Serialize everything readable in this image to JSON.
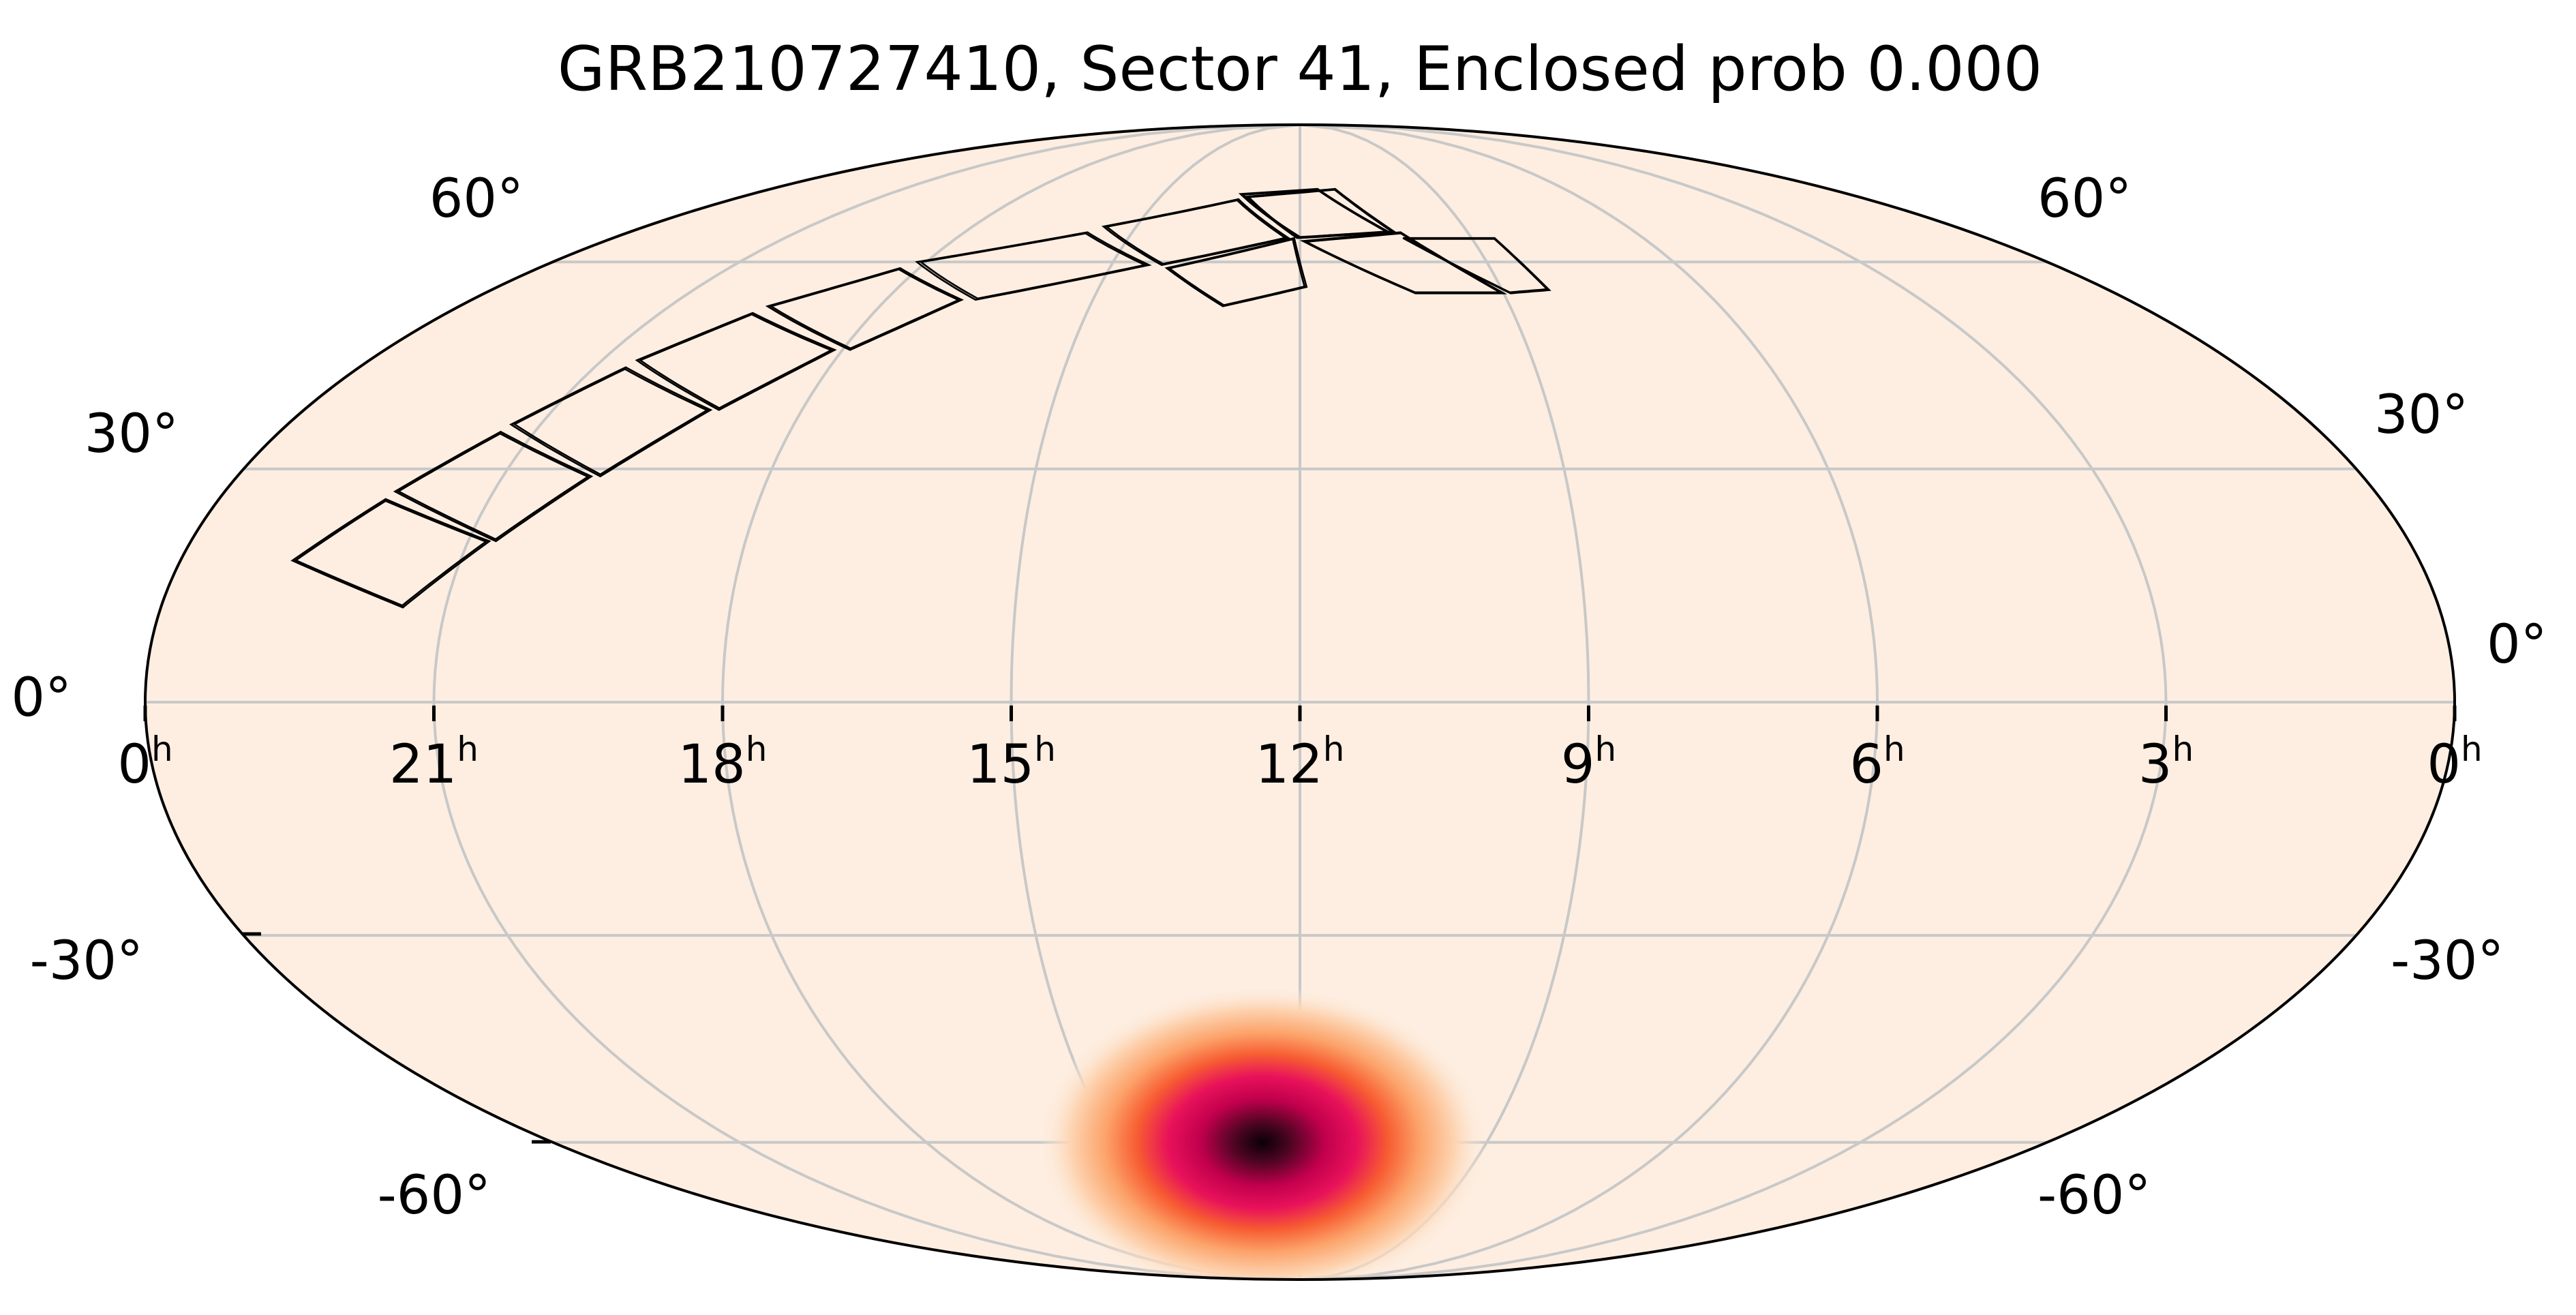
{
  "chart_data": {
    "type": "heatmap",
    "projection": "mollweide",
    "title": "GRB210727410, Sector 41, Enclosed prob 0.000",
    "ra_ticks": [
      {
        "label": "0",
        "sup": "h",
        "ra_hours": 24
      },
      {
        "label": "21",
        "sup": "h",
        "ra_hours": 21
      },
      {
        "label": "18",
        "sup": "h",
        "ra_hours": 18
      },
      {
        "label": "15",
        "sup": "h",
        "ra_hours": 15
      },
      {
        "label": "12",
        "sup": "h",
        "ra_hours": 12
      },
      {
        "label": "9",
        "sup": "h",
        "ra_hours": 9
      },
      {
        "label": "6",
        "sup": "h",
        "ra_hours": 6
      },
      {
        "label": "3",
        "sup": "h",
        "ra_hours": 3
      },
      {
        "label": "0",
        "sup": "h",
        "ra_hours": 0
      }
    ],
    "dec_ticks_left": [
      {
        "label": "60°",
        "dec": 60
      },
      {
        "label": "30°",
        "dec": 30
      },
      {
        "label": "0°",
        "dec": 0
      },
      {
        "label": "-30°",
        "dec": -30
      },
      {
        "label": "-60°",
        "dec": -60
      }
    ],
    "dec_ticks_right": [
      {
        "label": "60°",
        "dec": 60
      },
      {
        "label": "30°",
        "dec": 30
      },
      {
        "label": "0°",
        "dec": 0
      },
      {
        "label": "-30°",
        "dec": -30
      },
      {
        "label": "-60°",
        "dec": -60
      }
    ],
    "grid": true,
    "colormap": "magma_r",
    "background_color": "#fdeee1",
    "probability_peak": {
      "ra_hours": 12.6,
      "dec": -60,
      "sigma_deg": 4
    },
    "footprint_ccds": [
      {
        "ra": [
          22.8,
          22.15,
          20.77,
          21.45
        ],
        "dec": [
          18,
          26,
          20.5,
          12
        ]
      },
      {
        "ra": [
          22.1,
          21.4,
          20.0,
          20.7
        ],
        "dec": [
          27,
          35,
          29,
          20.5
        ]
      },
      {
        "ra": [
          21.35,
          20.6,
          19.1,
          19.9
        ],
        "dec": [
          36,
          44,
          38,
          29
        ]
      },
      {
        "ra": [
          20.55,
          19.7,
          18.1,
          19.0
        ],
        "dec": [
          45,
          52,
          46.5,
          38
        ]
      },
      {
        "ra": [
          19.6,
          18.3,
          16.9,
          17.9
        ],
        "dec": [
          53,
          59,
          54,
          46.5
        ]
      },
      {
        "ra": [
          18.15,
          15.8,
          14.4,
          16.7
        ],
        "dec": [
          60,
          65,
          59.5,
          54
        ]
      },
      {
        "ra": [
          15.6,
          13.3,
          12.2,
          14.2
        ],
        "dec": [
          66,
          71,
          64,
          59.5
        ]
      },
      {
        "ra": [
          13.15,
          11.2,
          10.3,
          12.05
        ],
        "dec": [
          71.5,
          73,
          65,
          64
        ]
      },
      {
        "ra": [
          13.3,
          12.0,
          10.4,
          11.6
        ],
        "dec": [
          72,
          64,
          65,
          73
        ]
      },
      {
        "ra": [
          14.1,
          12.1,
          11.9,
          13.1
        ],
        "dec": [
          59,
          64,
          56,
          53
        ]
      },
      {
        "ra": [
          11.95,
          10.2,
          9.0,
          10.3
        ],
        "dec": [
          63.5,
          65,
          55,
          55
        ]
      },
      {
        "ra": [
          10.2,
          8.6,
          8.3,
          8.9
        ],
        "dec": [
          64,
          64,
          55.5,
          55
        ]
      }
    ]
  }
}
